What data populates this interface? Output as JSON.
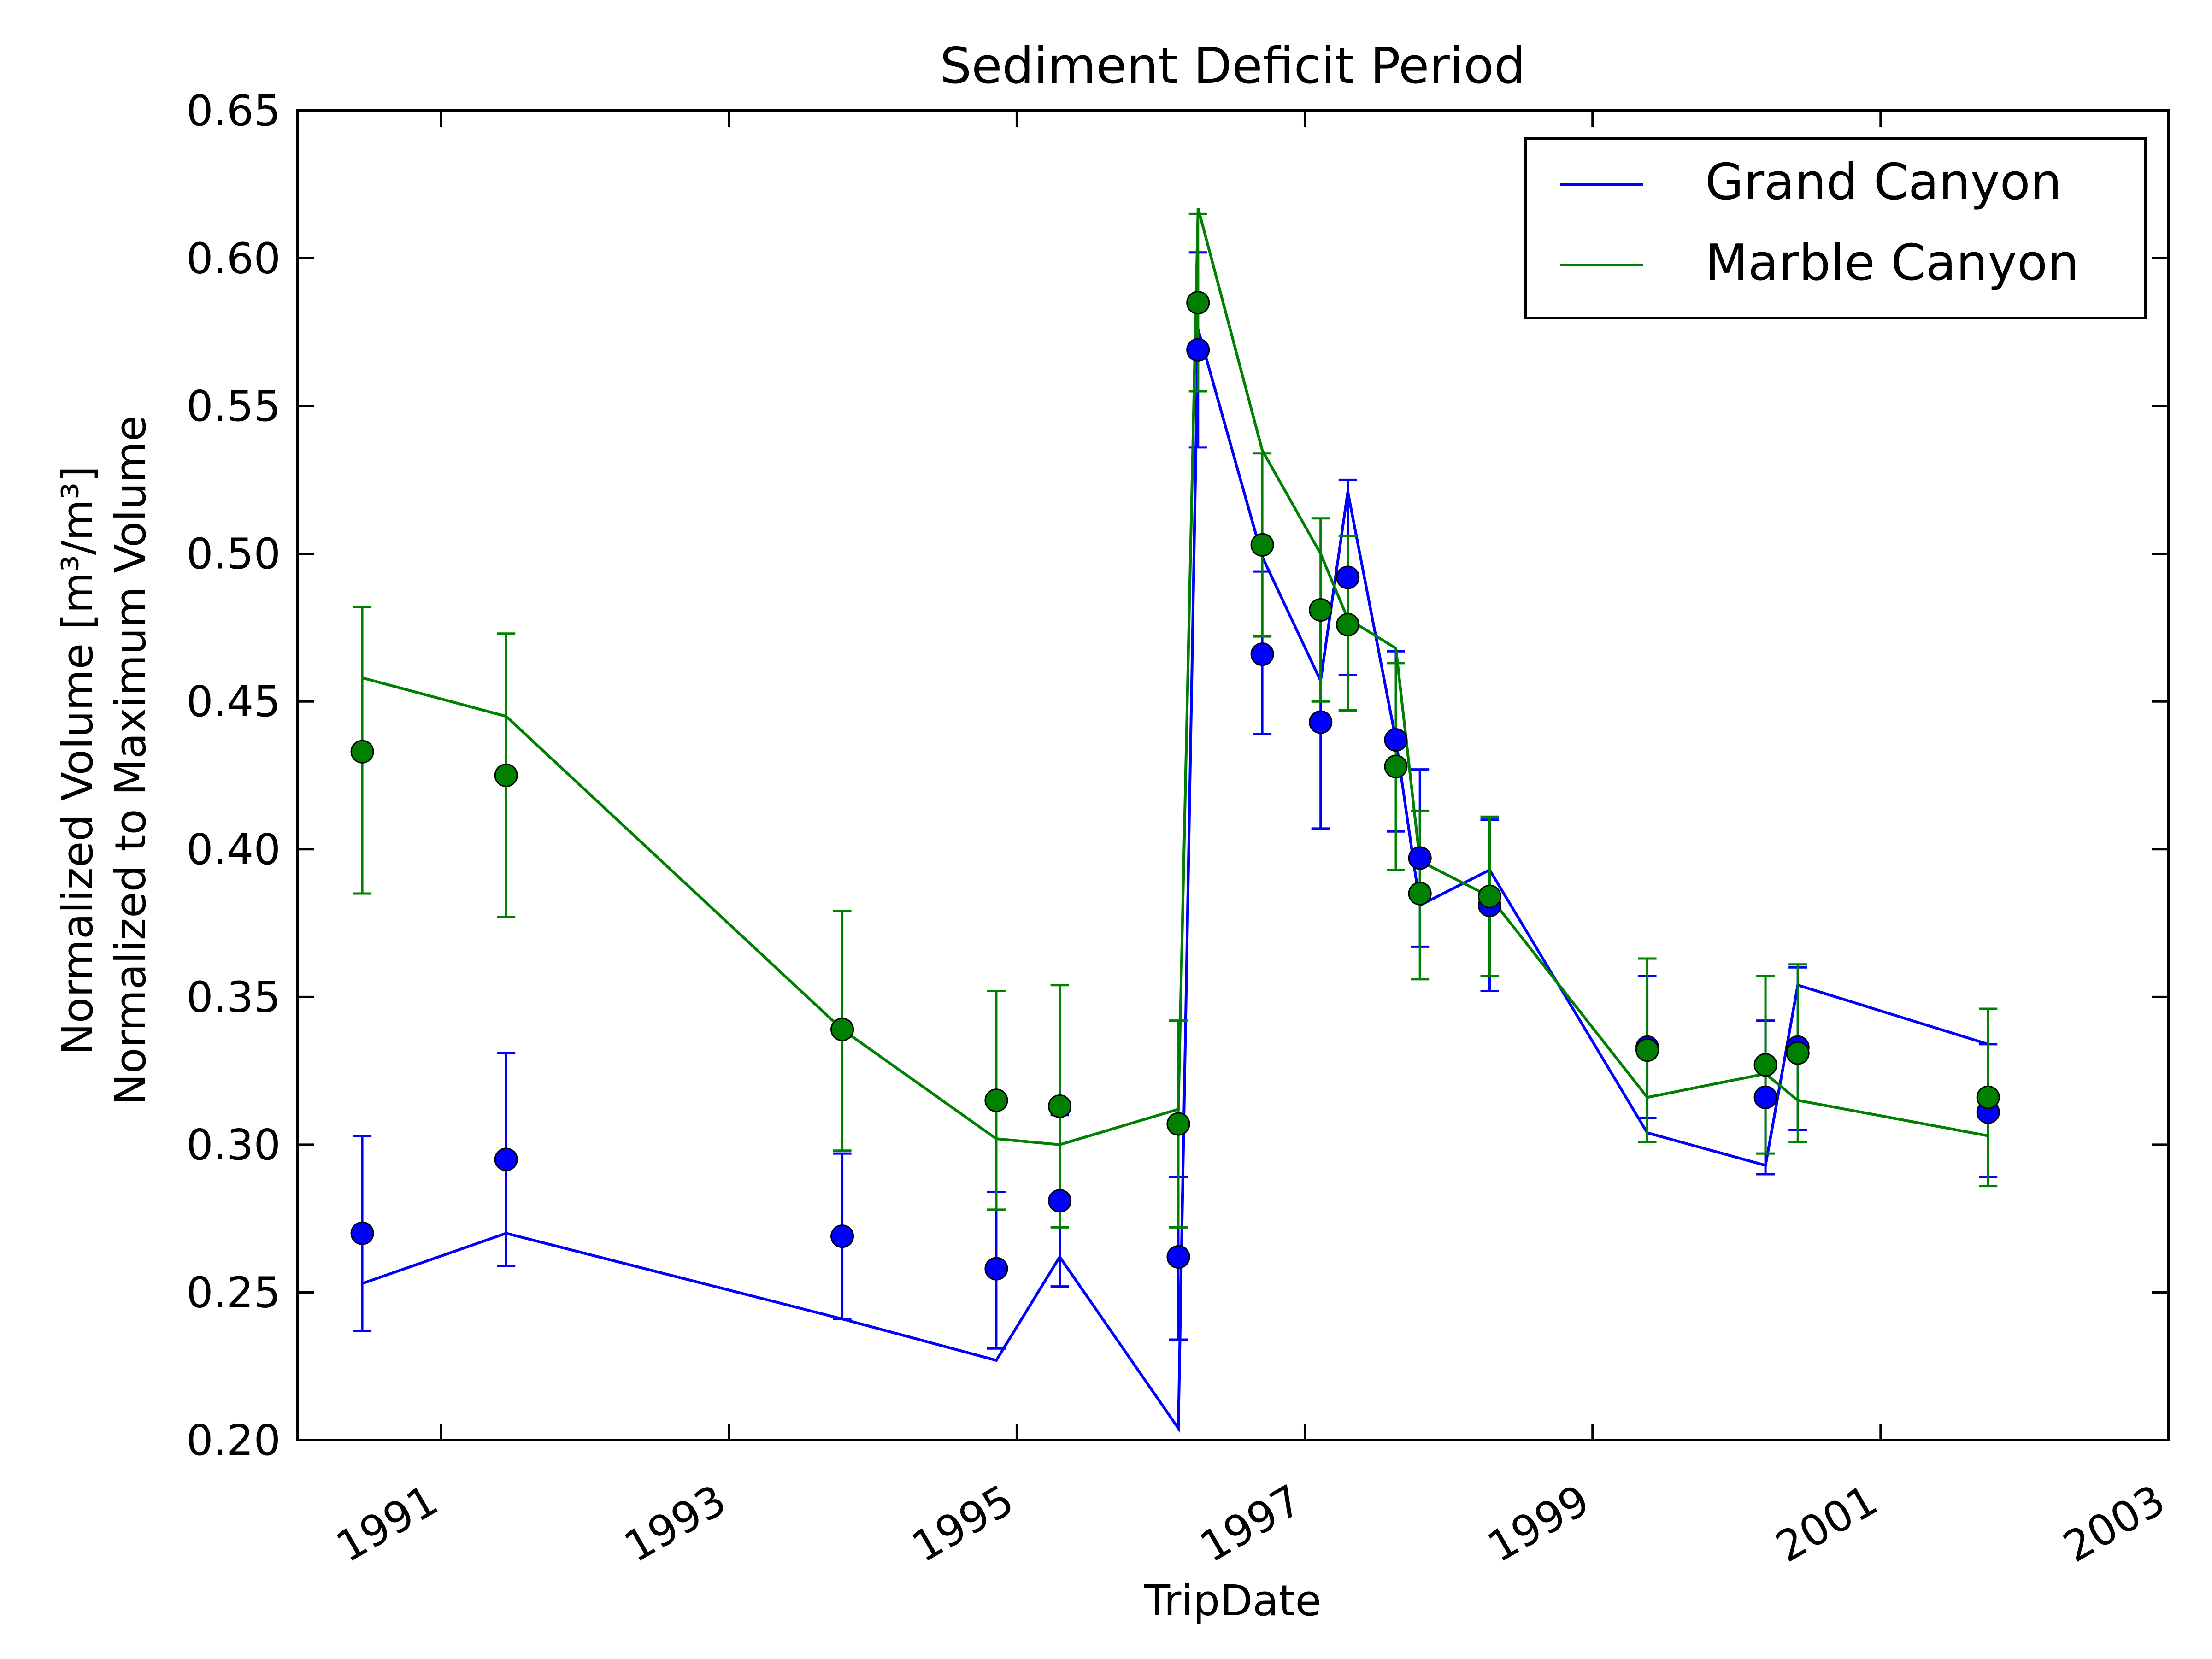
{
  "colors": {
    "grand": "#0000ff",
    "marble": "#008000",
    "axis": "#000000",
    "background": "#ffffff"
  },
  "chart_data": {
    "type": "line",
    "title": "Sediment Deficit Period",
    "xlabel": "TripDate",
    "ylabel_line1": "Normalized Volume [m³/m³]",
    "ylabel_line2": "Normalized to Maximum Volume",
    "x_scale": "time",
    "xlim": [
      "1990-01-01",
      "2003-01-01"
    ],
    "ylim": [
      0.2,
      0.65
    ],
    "x_ticks": [
      {
        "date": "1991-01-01",
        "label": "1991"
      },
      {
        "date": "1993-01-01",
        "label": "1993"
      },
      {
        "date": "1995-01-01",
        "label": "1995"
      },
      {
        "date": "1997-01-01",
        "label": "1997"
      },
      {
        "date": "1999-01-01",
        "label": "1999"
      },
      {
        "date": "2001-01-01",
        "label": "2001"
      },
      {
        "date": "2003-01-01",
        "label": "2003"
      }
    ],
    "y_ticks": [
      {
        "value": 0.2,
        "label": "0.20"
      },
      {
        "value": 0.25,
        "label": "0.25"
      },
      {
        "value": 0.3,
        "label": "0.30"
      },
      {
        "value": 0.35,
        "label": "0.35"
      },
      {
        "value": 0.4,
        "label": "0.40"
      },
      {
        "value": 0.45,
        "label": "0.45"
      },
      {
        "value": 0.5,
        "label": "0.50"
      },
      {
        "value": 0.55,
        "label": "0.55"
      },
      {
        "value": 0.6,
        "label": "0.60"
      },
      {
        "value": 0.65,
        "label": "0.65"
      }
    ],
    "grid": false,
    "legend_position": "top-right",
    "series": [
      {
        "name": "Grand Canyon",
        "color": "#0000ff",
        "line": [
          {
            "x": "1990-06-15",
            "y": 0.253
          },
          {
            "x": "1991-06-15",
            "y": 0.27
          },
          {
            "x": "1993-10-15",
            "y": 0.241
          },
          {
            "x": "1994-11-10",
            "y": 0.227
          },
          {
            "x": "1995-04-20",
            "y": 0.262
          },
          {
            "x": "1996-02-15",
            "y": 0.204
          },
          {
            "x": "1996-04-05",
            "y": 0.576
          },
          {
            "x": "1996-09-15",
            "y": 0.499
          },
          {
            "x": "1997-02-10",
            "y": 0.457
          },
          {
            "x": "1997-04-20",
            "y": 0.521
          },
          {
            "x": "1997-08-20",
            "y": 0.437
          },
          {
            "x": "1997-10-20",
            "y": 0.381
          },
          {
            "x": "1998-04-15",
            "y": 0.393
          },
          {
            "x": "1999-05-20",
            "y": 0.304
          },
          {
            "x": "2000-03-15",
            "y": 0.293
          },
          {
            "x": "2000-06-05",
            "y": 0.354
          },
          {
            "x": "2001-10-01",
            "y": 0.334
          }
        ],
        "points": [
          {
            "x": "1990-06-15",
            "y": 0.27,
            "err_low": 0.237,
            "err_high": 0.303
          },
          {
            "x": "1991-06-15",
            "y": 0.295,
            "err_low": 0.259,
            "err_high": 0.331
          },
          {
            "x": "1993-10-15",
            "y": 0.269,
            "err_low": 0.241,
            "err_high": 0.297
          },
          {
            "x": "1994-11-10",
            "y": 0.258,
            "err_low": 0.231,
            "err_high": 0.284
          },
          {
            "x": "1995-04-20",
            "y": 0.281,
            "err_low": 0.252,
            "err_high": 0.31
          },
          {
            "x": "1996-02-15",
            "y": 0.262,
            "err_low": 0.234,
            "err_high": 0.289
          },
          {
            "x": "1996-04-05",
            "y": 0.569,
            "err_low": 0.536,
            "err_high": 0.602
          },
          {
            "x": "1996-09-15",
            "y": 0.466,
            "err_low": 0.439,
            "err_high": 0.494
          },
          {
            "x": "1997-02-10",
            "y": 0.443,
            "err_low": 0.407,
            "err_high": 0.48
          },
          {
            "x": "1997-04-20",
            "y": 0.492,
            "err_low": 0.459,
            "err_high": 0.525
          },
          {
            "x": "1997-08-20",
            "y": 0.437,
            "err_low": 0.406,
            "err_high": 0.467
          },
          {
            "x": "1997-10-20",
            "y": 0.397,
            "err_low": 0.367,
            "err_high": 0.427
          },
          {
            "x": "1998-04-15",
            "y": 0.381,
            "err_low": 0.352,
            "err_high": 0.41
          },
          {
            "x": "1999-05-20",
            "y": 0.333,
            "err_low": 0.309,
            "err_high": 0.357
          },
          {
            "x": "2000-03-15",
            "y": 0.316,
            "err_low": 0.29,
            "err_high": 0.342
          },
          {
            "x": "2000-06-05",
            "y": 0.333,
            "err_low": 0.305,
            "err_high": 0.36
          },
          {
            "x": "2001-10-01",
            "y": 0.311,
            "err_low": 0.289,
            "err_high": 0.334
          }
        ]
      },
      {
        "name": "Marble Canyon",
        "color": "#008000",
        "line": [
          {
            "x": "1990-06-15",
            "y": 0.458
          },
          {
            "x": "1991-06-15",
            "y": 0.445
          },
          {
            "x": "1993-10-15",
            "y": 0.339
          },
          {
            "x": "1994-11-10",
            "y": 0.302
          },
          {
            "x": "1995-04-20",
            "y": 0.3
          },
          {
            "x": "1996-02-15",
            "y": 0.312
          },
          {
            "x": "1996-04-05",
            "y": 0.617
          },
          {
            "x": "1996-09-15",
            "y": 0.535
          },
          {
            "x": "1997-02-10",
            "y": 0.5
          },
          {
            "x": "1997-04-20",
            "y": 0.478
          },
          {
            "x": "1997-08-20",
            "y": 0.468
          },
          {
            "x": "1997-10-20",
            "y": 0.396
          },
          {
            "x": "1998-04-15",
            "y": 0.384
          },
          {
            "x": "1999-05-20",
            "y": 0.316
          },
          {
            "x": "2000-03-15",
            "y": 0.324
          },
          {
            "x": "2000-06-05",
            "y": 0.315
          },
          {
            "x": "2001-10-01",
            "y": 0.303
          }
        ],
        "points": [
          {
            "x": "1990-06-15",
            "y": 0.433,
            "err_low": 0.385,
            "err_high": 0.482
          },
          {
            "x": "1991-06-15",
            "y": 0.425,
            "err_low": 0.377,
            "err_high": 0.473
          },
          {
            "x": "1993-10-15",
            "y": 0.339,
            "err_low": 0.298,
            "err_high": 0.379
          },
          {
            "x": "1994-11-10",
            "y": 0.315,
            "err_low": 0.278,
            "err_high": 0.352
          },
          {
            "x": "1995-04-20",
            "y": 0.313,
            "err_low": 0.272,
            "err_high": 0.354
          },
          {
            "x": "1996-02-15",
            "y": 0.307,
            "err_low": 0.272,
            "err_high": 0.342
          },
          {
            "x": "1996-04-05",
            "y": 0.585,
            "err_low": 0.555,
            "err_high": 0.615
          },
          {
            "x": "1996-09-15",
            "y": 0.503,
            "err_low": 0.472,
            "err_high": 0.534
          },
          {
            "x": "1997-02-10",
            "y": 0.481,
            "err_low": 0.45,
            "err_high": 0.512
          },
          {
            "x": "1997-04-20",
            "y": 0.476,
            "err_low": 0.447,
            "err_high": 0.506
          },
          {
            "x": "1997-08-20",
            "y": 0.428,
            "err_low": 0.393,
            "err_high": 0.463
          },
          {
            "x": "1997-10-20",
            "y": 0.385,
            "err_low": 0.356,
            "err_high": 0.413
          },
          {
            "x": "1998-04-15",
            "y": 0.384,
            "err_low": 0.357,
            "err_high": 0.411
          },
          {
            "x": "1999-05-20",
            "y": 0.332,
            "err_low": 0.301,
            "err_high": 0.363
          },
          {
            "x": "2000-03-15",
            "y": 0.327,
            "err_low": 0.297,
            "err_high": 0.357
          },
          {
            "x": "2000-06-05",
            "y": 0.331,
            "err_low": 0.301,
            "err_high": 0.361
          },
          {
            "x": "2001-10-01",
            "y": 0.316,
            "err_low": 0.286,
            "err_high": 0.346
          }
        ]
      }
    ]
  }
}
